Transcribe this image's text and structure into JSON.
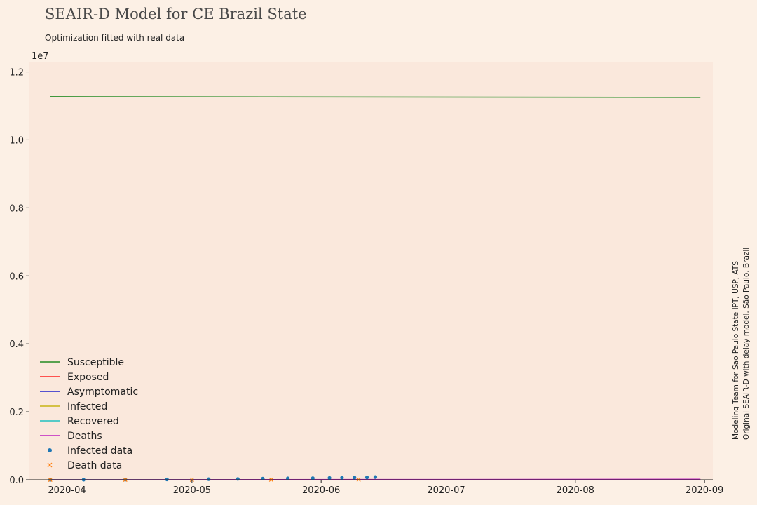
{
  "header": {
    "title": "SEAIR-D Model for CE Brazil State",
    "subtitle": "Optimization fitted with real data"
  },
  "credits": {
    "line1": "Modeling Team for Sao Paulo State IPT, USP, ATS",
    "line2": "Original SEAIR-D with delay model, São Paulo, Brazil"
  },
  "chart_data": {
    "type": "line",
    "title": "SEAIR-D Model for CE Brazil State",
    "subtitle": "Optimization fitted with real data",
    "xlabel": "",
    "ylabel": "",
    "x_range": [
      "2020-03-23",
      "2020-09-03"
    ],
    "ylim": [
      0,
      12300000
    ],
    "y_offset_label": "1e7",
    "x_ticks": [
      {
        "date": "2020-04-01",
        "label": "2020-04"
      },
      {
        "date": "2020-05-01",
        "label": "2020-05"
      },
      {
        "date": "2020-06-01",
        "label": "2020-06"
      },
      {
        "date": "2020-07-01",
        "label": "2020-07"
      },
      {
        "date": "2020-08-01",
        "label": "2020-08"
      },
      {
        "date": "2020-09-01",
        "label": "2020-09"
      }
    ],
    "y_ticks": [
      {
        "value": 0,
        "label": "0.0"
      },
      {
        "value": 2000000,
        "label": "0.2"
      },
      {
        "value": 4000000,
        "label": "0.4"
      },
      {
        "value": 6000000,
        "label": "0.6"
      },
      {
        "value": 8000000,
        "label": "0.8"
      },
      {
        "value": 10000000,
        "label": "1.0"
      },
      {
        "value": 12000000,
        "label": "1.2"
      }
    ],
    "grid": false,
    "legend_position": "lower-left",
    "series": [
      {
        "name": "Susceptible",
        "color": "#228b22",
        "style": "line",
        "x": [
          "2020-03-28",
          "2020-08-31"
        ],
        "values": [
          11270000,
          11250000
        ]
      },
      {
        "name": "Exposed",
        "color": "#ff2020",
        "style": "line",
        "x": [
          "2020-03-28",
          "2020-08-31"
        ],
        "values": [
          0,
          0
        ]
      },
      {
        "name": "Asymptomatic",
        "color": "#2020cc",
        "style": "line",
        "x": [
          "2020-03-28",
          "2020-08-31"
        ],
        "values": [
          0,
          0
        ]
      },
      {
        "name": "Infected",
        "color": "#c8b414",
        "style": "line",
        "x": [
          "2020-03-28",
          "2020-08-31"
        ],
        "values": [
          0,
          0
        ]
      },
      {
        "name": "Recovered",
        "color": "#20c0c0",
        "style": "line",
        "x": [
          "2020-03-28",
          "2020-08-31"
        ],
        "values": [
          0,
          0
        ]
      },
      {
        "name": "Deaths",
        "color": "#c020c0",
        "style": "line",
        "x": [
          "2020-03-28",
          "2020-08-31"
        ],
        "values": [
          0,
          15000
        ]
      },
      {
        "name": "Infected data",
        "color": "#1f77b4",
        "style": "points",
        "x": [
          "2020-03-28",
          "2020-04-05",
          "2020-04-15",
          "2020-04-25",
          "2020-05-05",
          "2020-05-12",
          "2020-05-18",
          "2020-05-24",
          "2020-05-30",
          "2020-06-03",
          "2020-06-06",
          "2020-06-09",
          "2020-06-12",
          "2020-06-14"
        ],
        "values": [
          500,
          2000,
          5000,
          10000,
          18000,
          25000,
          35000,
          42000,
          48000,
          55000,
          60000,
          65000,
          70000,
          80000
        ]
      },
      {
        "name": "Death data",
        "color": "#ff7f0e",
        "style": "cross",
        "x": [
          "2020-03-28",
          "2020-04-15",
          "2020-05-01",
          "2020-05-20",
          "2020-06-10"
        ],
        "values": [
          10,
          300,
          800,
          2000,
          4000
        ]
      }
    ]
  }
}
